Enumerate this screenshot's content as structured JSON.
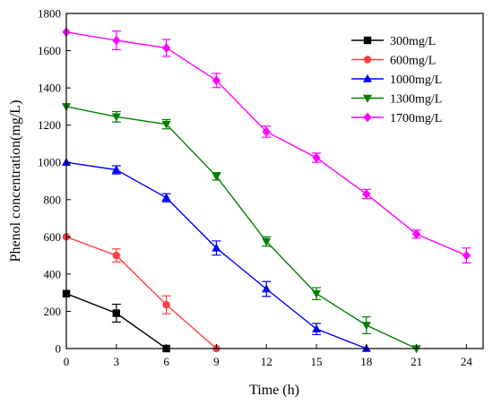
{
  "chart_data": {
    "type": "line",
    "xlabel": "Time (h)",
    "ylabel": "Phenol concentration(mg/L)",
    "xlim": [
      0,
      25
    ],
    "ylim": [
      0,
      1800
    ],
    "xticks": [
      0,
      3,
      6,
      9,
      12,
      15,
      18,
      21,
      24
    ],
    "yticks": [
      0,
      200,
      400,
      600,
      800,
      1000,
      1200,
      1400,
      1600,
      1800
    ],
    "grid": false,
    "legend_position": "top-right",
    "series": [
      {
        "name": "300mg/L",
        "color": "#000000",
        "marker": "square",
        "x": [
          0,
          3,
          6
        ],
        "y": [
          295,
          190,
          0
        ],
        "err": [
          0,
          48,
          0
        ]
      },
      {
        "name": "600mg/L",
        "color": "#ff4040",
        "marker": "circle",
        "x": [
          0,
          3,
          6,
          9
        ],
        "y": [
          600,
          500,
          235,
          0
        ],
        "err": [
          0,
          35,
          48,
          0
        ]
      },
      {
        "name": "1000mg/L",
        "color": "#0000ff",
        "marker": "triangle-up",
        "x": [
          0,
          3,
          6,
          9,
          12,
          15,
          18
        ],
        "y": [
          1000,
          960,
          810,
          540,
          320,
          105,
          0
        ],
        "err": [
          0,
          22,
          22,
          38,
          40,
          30,
          0
        ]
      },
      {
        "name": "1300mg/L",
        "color": "#008000",
        "marker": "triangle-down",
        "x": [
          0,
          3,
          6,
          9,
          12,
          15,
          18,
          21
        ],
        "y": [
          1300,
          1245,
          1205,
          925,
          575,
          295,
          125,
          0
        ],
        "err": [
          0,
          28,
          25,
          20,
          25,
          32,
          45,
          0
        ]
      },
      {
        "name": "1700mg/L",
        "color": "#ff00ff",
        "marker": "diamond",
        "x": [
          0,
          3,
          6,
          9,
          12,
          15,
          18,
          21,
          24
        ],
        "y": [
          1700,
          1655,
          1615,
          1440,
          1165,
          1025,
          830,
          615,
          500
        ],
        "err": [
          0,
          50,
          45,
          38,
          30,
          25,
          25,
          22,
          40
        ]
      }
    ]
  }
}
